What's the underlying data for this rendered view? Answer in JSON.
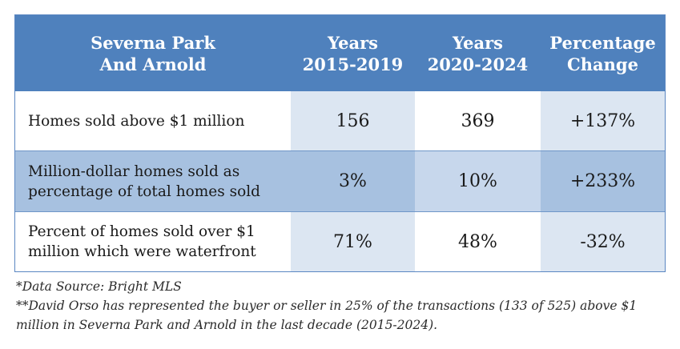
{
  "table": {
    "headers": [
      [
        "Severna Park",
        "And Arnold"
      ],
      [
        "Years",
        "2015-2019"
      ],
      [
        "Years",
        "2020-2024"
      ],
      [
        "Percentage",
        "Change"
      ]
    ],
    "rows": [
      {
        "label": [
          "Homes sold above $1 million"
        ],
        "values": [
          "156",
          "369",
          "+137%"
        ]
      },
      {
        "label": [
          "Million-dollar homes sold as",
          "percentage of total homes sold"
        ],
        "values": [
          "3%",
          "10%",
          "+233%"
        ]
      },
      {
        "label": [
          "Percent of homes sold over $1",
          "million which were waterfront"
        ],
        "values": [
          "71%",
          "48%",
          "-32%"
        ]
      }
    ]
  },
  "footnotes": {
    "source": "*Data Source: Bright MLS",
    "note_line1": "**David Orso has represented the buyer or seller in 25% of the transactions (133 of 525) above $1",
    "note_line2": "million in Severna Park and Arnold in the last decade (2015-2024)."
  },
  "colors": {
    "header_bg": "#4f81bd",
    "light_cell": "#dce6f2",
    "mid_cell": "#a7c1e0",
    "band_cell": "#c7d7ec"
  }
}
